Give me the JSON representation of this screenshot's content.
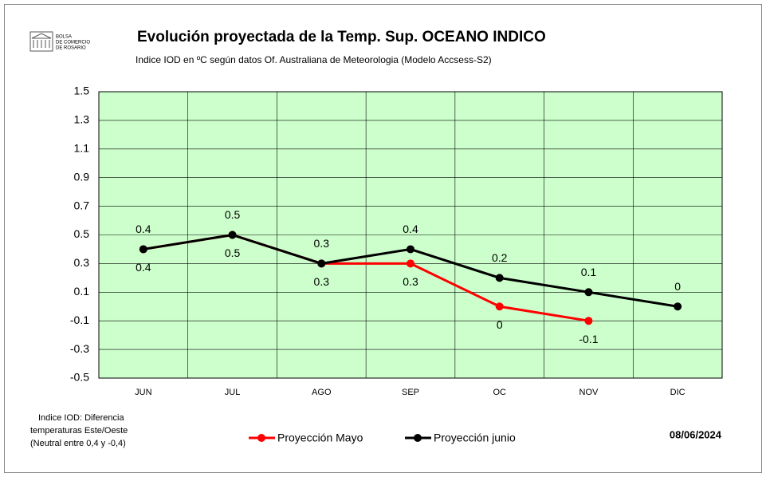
{
  "chart_data": {
    "type": "line",
    "logo": [
      "BOLSA",
      "DE COMERCIO",
      "DE ROSARIO"
    ],
    "title": "Evolución proyectada de la Temp. Sup.  OCEANO INDICO",
    "subtitle": "Indice IOD en ºC según datos Of. Australiana de Meteorologia (Modelo Accsess-S2)",
    "categories": [
      "JUN",
      "JUL",
      "AGO",
      "SEP",
      "OC",
      "NOV",
      "DIC"
    ],
    "series": [
      {
        "name": "Proyección  Mayo",
        "color": "#ff0000",
        "label_position": "below",
        "values": [
          0.4,
          0.5,
          0.3,
          0.3,
          0,
          -0.1,
          null
        ]
      },
      {
        "name": "Proyección junio",
        "color": "#000000",
        "label_position": "above",
        "values": [
          0.4,
          0.5,
          0.3,
          0.4,
          0.2,
          0.1,
          0
        ]
      }
    ],
    "ylim": [
      -0.5,
      1.5
    ],
    "yticks": [
      -0.5,
      -0.3,
      -0.1,
      0.1,
      0.3,
      0.5,
      0.7,
      0.9,
      1.1,
      1.3,
      1.5
    ],
    "grid": true,
    "plot_color": "#ccffcc",
    "note": [
      "Indice IOD: Diferencia",
      "temperaturas Este/Oeste",
      "(Neutral entre 0,4 y -0,4)"
    ],
    "date": "08/06/2024"
  }
}
